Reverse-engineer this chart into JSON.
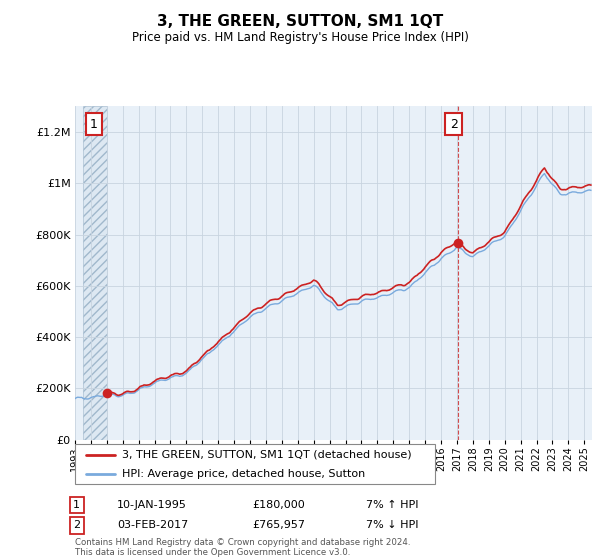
{
  "title": "3, THE GREEN, SUTTON, SM1 1QT",
  "subtitle": "Price paid vs. HM Land Registry's House Price Index (HPI)",
  "footer": "Contains HM Land Registry data © Crown copyright and database right 2024.\nThis data is licensed under the Open Government Licence v3.0.",
  "legend_line1": "3, THE GREEN, SUTTON, SM1 1QT (detached house)",
  "legend_line2": "HPI: Average price, detached house, Sutton",
  "annotation1_date": "10-JAN-1995",
  "annotation1_price": "£180,000",
  "annotation1_hpi": "7% ↑ HPI",
  "annotation2_date": "03-FEB-2017",
  "annotation2_price": "£765,957",
  "annotation2_hpi": "7% ↓ HPI",
  "price_color": "#cc2222",
  "hpi_color": "#7aaadd",
  "grid_color": "#c8d4e0",
  "plot_bg_color": "#e8f0f8",
  "hatch_bg_color": "#dde8f2",
  "ylim_min": 0,
  "ylim_max": 1300000,
  "yticks": [
    0,
    200000,
    400000,
    600000,
    800000,
    1000000,
    1200000
  ],
  "ytick_labels": [
    "£0",
    "£200K",
    "£400K",
    "£600K",
    "£800K",
    "£1M",
    "£1.2M"
  ],
  "xmin_year": 1993.5,
  "xmax_year": 2025.5,
  "xtick_years": [
    1993,
    1994,
    1995,
    1996,
    1997,
    1998,
    1999,
    2000,
    2001,
    2002,
    2003,
    2004,
    2005,
    2006,
    2007,
    2008,
    2009,
    2010,
    2011,
    2012,
    2013,
    2014,
    2015,
    2016,
    2017,
    2018,
    2019,
    2020,
    2021,
    2022,
    2023,
    2024,
    2025
  ],
  "transaction1_x": 1995.03,
  "transaction1_y": 180000,
  "transaction2_x": 2017.09,
  "transaction2_y": 765957,
  "hatch_left_end": 1995.03,
  "hatch_right_start": 2025.5
}
